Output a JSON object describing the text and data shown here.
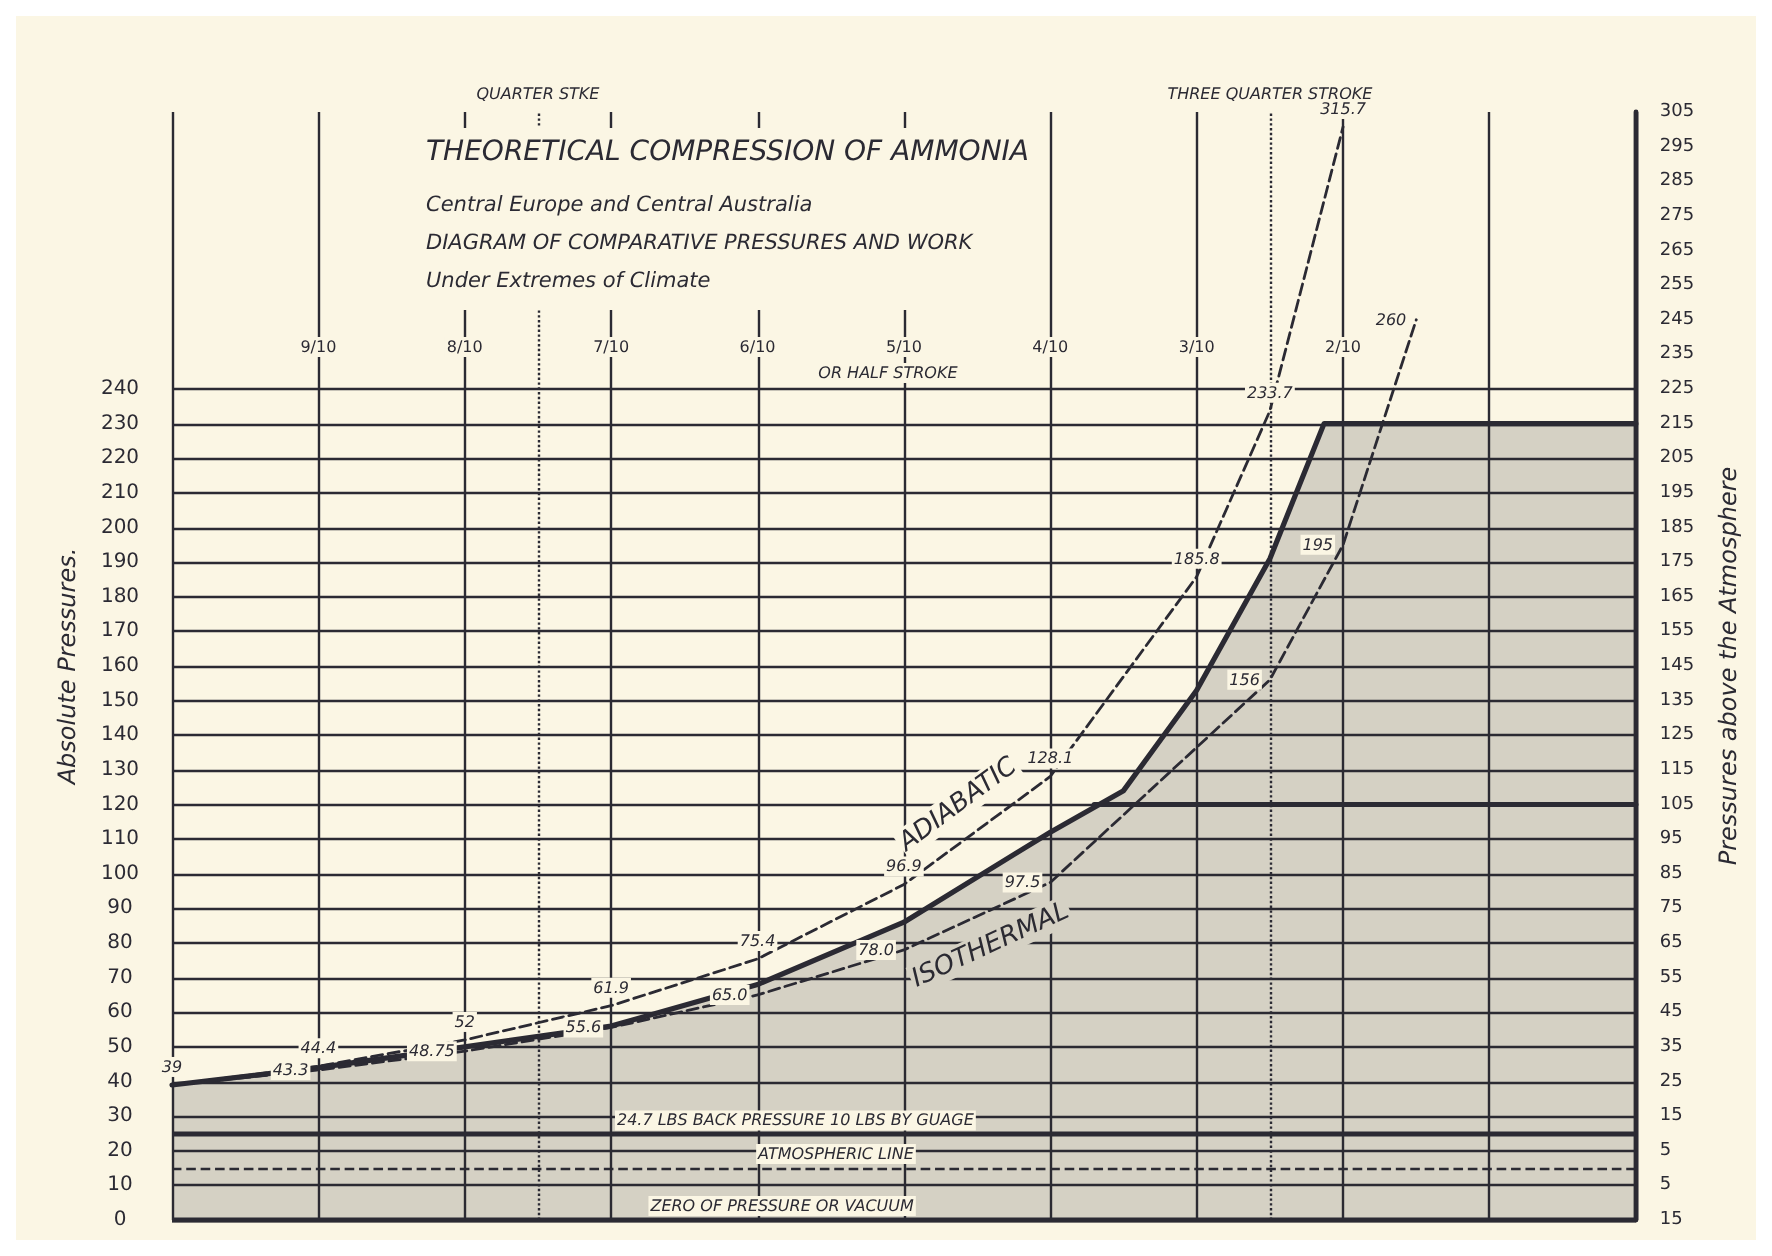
{
  "chart_data": {
    "type": "line",
    "title": "THEORETICAL COMPRESSION OF AMMONIA",
    "subtitle": "Central Europe and Central Australia\nDIAGRAM OF COMPARATIVE PRESSURES AND WORK\nUnder Extremes of Climate",
    "ylabel": "Absolute Pressures.",
    "y2label": "Pressures above the Atmosphere",
    "xlim": [
      1.0,
      0.0
    ],
    "xticks": [
      {
        "value": 1.0,
        "label": null
      },
      {
        "value": 0.9,
        "label": "9/10"
      },
      {
        "value": 0.8,
        "label": "8/10"
      },
      {
        "value": 0.7,
        "label": "7/10"
      },
      {
        "value": 0.6,
        "label": "6/10"
      },
      {
        "value": 0.5,
        "label": "5/10"
      },
      {
        "value": 0.4,
        "label": "4/10"
      },
      {
        "value": 0.3,
        "label": "3/10"
      },
      {
        "value": 0.2,
        "label": "2/10"
      },
      {
        "value": 0.1,
        "label": null
      },
      {
        "value": 0.0,
        "label": null
      }
    ],
    "ylim": [
      0,
      320
    ],
    "yticks": [
      0,
      10,
      20,
      30,
      40,
      50,
      60,
      70,
      80,
      90,
      100,
      110,
      120,
      130,
      140,
      150,
      160,
      170,
      180,
      190,
      200,
      210,
      220,
      230,
      240
    ],
    "y2lim": [
      -15,
      305
    ],
    "y2ticks": [
      {
        "value": -15,
        "label": "15"
      },
      {
        "value": -5,
        "label": "5"
      },
      5,
      15,
      25,
      35,
      45,
      55,
      65,
      75,
      85,
      95,
      105,
      115,
      125,
      135,
      145,
      155,
      165,
      175,
      185,
      195,
      205,
      215,
      225,
      235,
      245,
      255,
      265,
      275,
      285,
      295,
      305
    ],
    "grid": true,
    "legend": false,
    "marker": "none",
    "series": [
      {
        "type": "area",
        "color": "#2b2a33",
        "line_style": "solid",
        "x": [
          1.0,
          0.9,
          0.8,
          0.7,
          0.6,
          0.5,
          0.4,
          0.35,
          0.3,
          0.25,
          0.213,
          0.0
        ],
        "values": [
          39,
          44,
          50,
          56,
          68,
          86,
          112,
          124,
          153,
          191,
          230,
          230
        ]
      },
      {
        "type": "line",
        "color": "#2b2a33",
        "line_style": "solid",
        "x": [
          0.37,
          0.0
        ],
        "values": [
          120,
          120
        ]
      },
      {
        "name": "ADIABATIC",
        "type": "line",
        "color": "#2b2a33",
        "line_style": "dashed",
        "x": [
          1.0,
          0.9,
          0.8,
          0.7,
          0.6,
          0.5,
          0.4,
          0.3,
          0.25,
          0.2
        ],
        "values": [
          39,
          44.4,
          52,
          61.9,
          75.4,
          96.9,
          128.1,
          185.8,
          233.7,
          315.7
        ],
        "value_labels": [
          "39",
          "44.4",
          "52",
          "61.9",
          "75.4",
          "96.9",
          "128.1",
          "185.8",
          "233.7",
          "315.7"
        ]
      },
      {
        "name": "ISOTHERMAL",
        "type": "line",
        "color": "#2b2a33",
        "line_style": "dashed",
        "x": [
          1.0,
          0.9,
          0.8,
          0.7,
          0.6,
          0.5,
          0.4,
          0.25,
          0.2,
          0.15
        ],
        "values": [
          39,
          43.3,
          48.75,
          55.6,
          65.0,
          78.0,
          97.5,
          156,
          195,
          260
        ],
        "value_labels": [
          null,
          "43.3",
          "48.75",
          "55.6",
          "65.0",
          "78.0",
          "97.5",
          "156",
          "195",
          "260"
        ]
      }
    ],
    "ref_lines": [
      {
        "axis": "y",
        "value": 24.7,
        "label": "24.7 LBS BACK PRESSURE 10 LBS BY GUAGE",
        "line_style": "solid",
        "color": "#2b2a33"
      },
      {
        "axis": "y",
        "value": 15,
        "label": "ATMOSPHERIC LINE",
        "line_style": "dashed",
        "color": "#2b2a33"
      },
      {
        "axis": "y",
        "value": 0,
        "label": "ZERO OF PRESSURE OR VACUUM",
        "line_style": "solid",
        "color": "#2b2a33"
      },
      {
        "axis": "x",
        "value": 0.75,
        "label": "QUARTER STKE",
        "line_style": "dotted",
        "color": "#2b2a33"
      },
      {
        "axis": "x",
        "value": 0.25,
        "label": "THREE QUARTER STROKE",
        "line_style": "dotted",
        "color": "#2b2a33"
      }
    ],
    "annotations": [
      "OR HALF STROKE"
    ]
  }
}
